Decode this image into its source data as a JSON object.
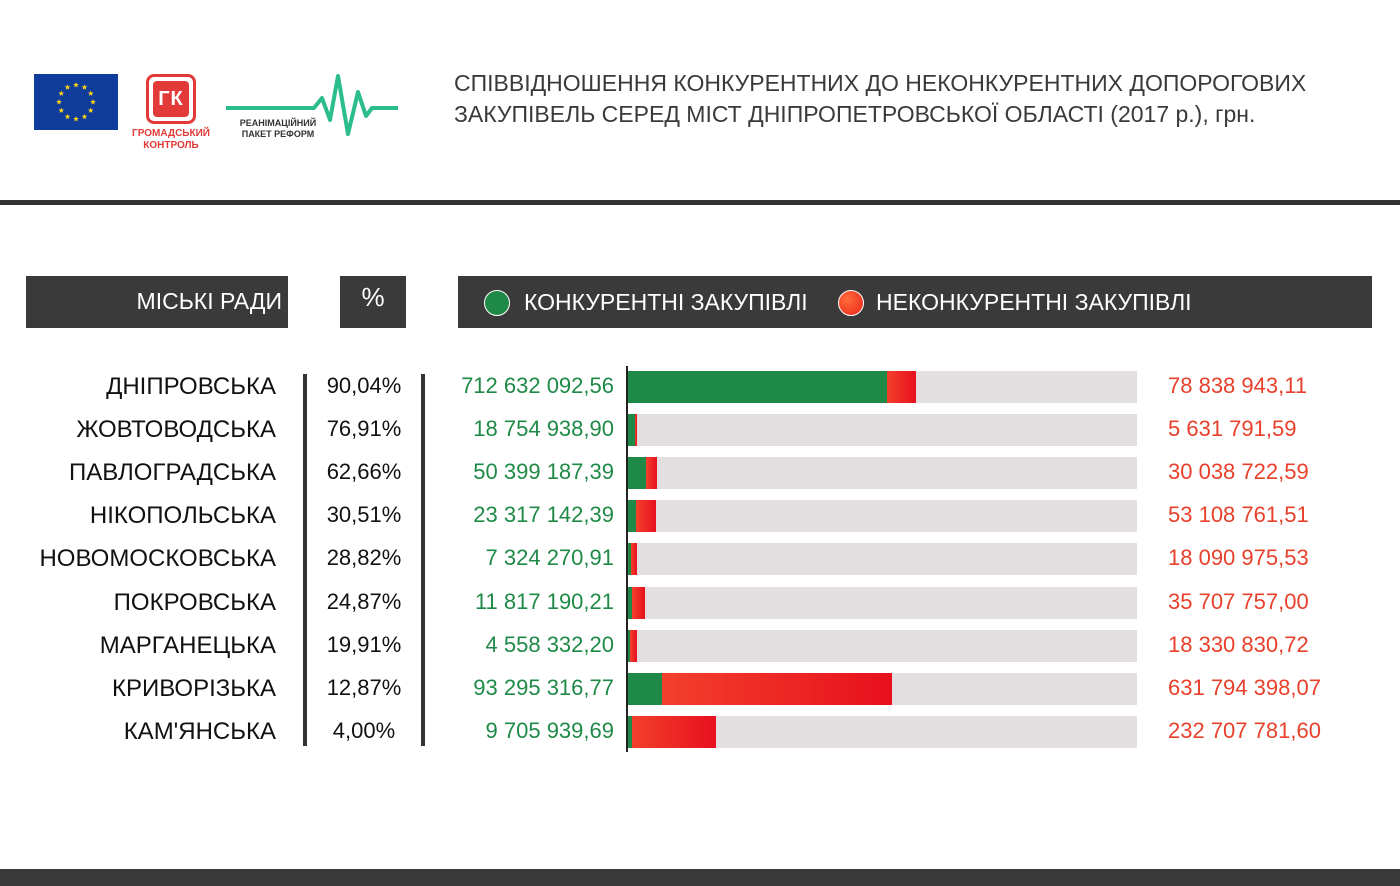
{
  "header": {
    "title": "Співвідношення конкурентних до неконкурентних допорогових закупівель серед міст Дніпропетровської області",
    "title_tail": " (2017 р.), грн.",
    "logos": {
      "eu": "eu-flag-icon",
      "gk_text": "ГК",
      "gk_caption": "ГРОМАДСЬКИЙ КОНТРОЛЬ",
      "rpr_caption": "РЕАНІМАЦІЙНИЙ ПАКЕТ РЕФОРМ"
    }
  },
  "columns": {
    "cities": "МІСЬКІ РАДИ",
    "percent": "%",
    "legend_competitive": "КОНКУРЕНТНІ ЗАКУПІВЛІ",
    "legend_noncompetitive": "НЕКОНКУРЕНТНІ ЗАКУПІВЛІ"
  },
  "colors": {
    "competitive": "#1F8A47",
    "noncompetitive": "#E8261B",
    "track": "#E3DFE0",
    "dark": "#3A3A3A"
  },
  "chart_data": {
    "type": "bar",
    "orientation": "horizontal",
    "stacked": true,
    "categories": [
      "ДНІПРОВСЬКА",
      "ЖОВТОВОДСЬКА",
      "ПАВЛОГРАДСЬКА",
      "НІКОПОЛЬСЬКА",
      "НОВОМОСКОВСЬКА",
      "ПОКРОВСЬКА",
      "МАРГАНЕЦЬКА",
      "КРИВОРІЗЬКА",
      "КАМ'ЯНСЬКА"
    ],
    "percent_labels": [
      "90,04%",
      "76,91%",
      "62,66%",
      "30,51%",
      "28,82%",
      "24,87%",
      "19,91%",
      "12,87%",
      "4,00%"
    ],
    "series": [
      {
        "name": "КОНКУРЕНТНІ ЗАКУПІВЛІ",
        "values": [
          712632092.56,
          18754938.9,
          50399187.39,
          23317142.39,
          7324270.91,
          11817190.21,
          4558332.2,
          93295316.77,
          9705939.69
        ],
        "labels": [
          "712 632 092,56",
          "18 754 938,90",
          "50 399 187,39",
          "23 317 142,39",
          "7 324 270,91",
          "11 817 190,21",
          "4 558 332,20",
          "93 295 316,77",
          "9 705 939,69"
        ]
      },
      {
        "name": "НЕКОНКУРЕНТНІ ЗАКУПІВЛІ",
        "values": [
          78838943.11,
          5631791.59,
          30038722.59,
          53108761.51,
          18090975.53,
          35707757.0,
          18330830.72,
          631794398.07,
          232707781.6
        ],
        "labels": [
          "78 838 943,11",
          "5 631 791,59",
          "30 038 722,59",
          "53 108 761,51",
          "18 090 975,53",
          "35 707 757,00",
          "18 330 830,72",
          "631 794 398,07",
          "232 707 781,60"
        ]
      }
    ],
    "xlim": [
      0,
      1400000000
    ],
    "grid": false,
    "legend_position": "top"
  }
}
